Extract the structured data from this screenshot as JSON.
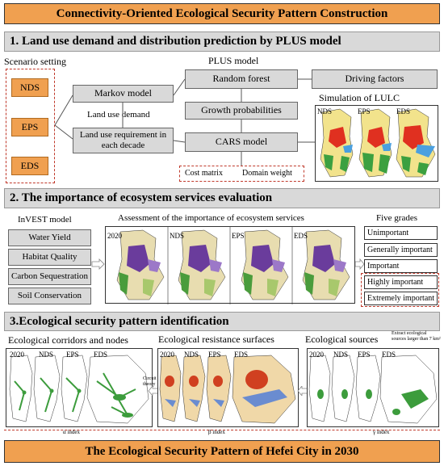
{
  "main_title": "Connectivity-Oriented Ecological Security Pattern Construction",
  "section1": {
    "title": "1. Land use demand and distribution prediction by PLUS model",
    "scenario_label": "Scenario setting",
    "scenarios": [
      "NDS",
      "EPS",
      "EDS"
    ],
    "plus_model_label": "PLUS model",
    "markov": "Markov model",
    "land_use_demand": "Land use demand",
    "land_use_req": "Land use requirement in each decade",
    "random_forest": "Random forest",
    "growth_prob": "Growth probabilities",
    "cars": "CARS model",
    "driving_factors": "Driving factors",
    "simulation_label": "Simulation of LULC",
    "sim_maps": [
      "NDS",
      "EPS",
      "EDS"
    ],
    "cost_matrix": "Cost matrix",
    "domain_weight": "Domain weight"
  },
  "section2": {
    "title": "2. The importance of ecosystem services evaluation",
    "invest_label": "InVEST model",
    "services": [
      "Water Yield",
      "Habitat Quality",
      "Carbon Sequestration",
      "Soil Conservation"
    ],
    "assessment_label": "Assessment of the importance of ecosystem services",
    "maps": [
      "2020",
      "NDS",
      "EPS",
      "EDS"
    ],
    "grades_label": "Five grades",
    "grades": [
      "Unimportant",
      "Generally important",
      "Important",
      "Highly important",
      "Extremely important"
    ]
  },
  "section3": {
    "title": "3.Ecological security pattern identification",
    "corridors_label": "Ecological corridors and nodes",
    "resistance_label": "Ecological resistance surfaces",
    "sources_label": "Ecological sources",
    "extract_note": "Extract ecological sources larger than 7 km²",
    "circuit": "Circuit theory",
    "maps": [
      "2020",
      "NDS",
      "EPS",
      "EDS"
    ],
    "alpha": "α index",
    "beta": "β index",
    "gamma": "γ index"
  },
  "footer_title": "The Ecological Security Pattern of Hefei City in 2030",
  "colors": {
    "orange": "#f0a050",
    "grey": "#d9d9d9",
    "dash_red": "#c0392b"
  }
}
